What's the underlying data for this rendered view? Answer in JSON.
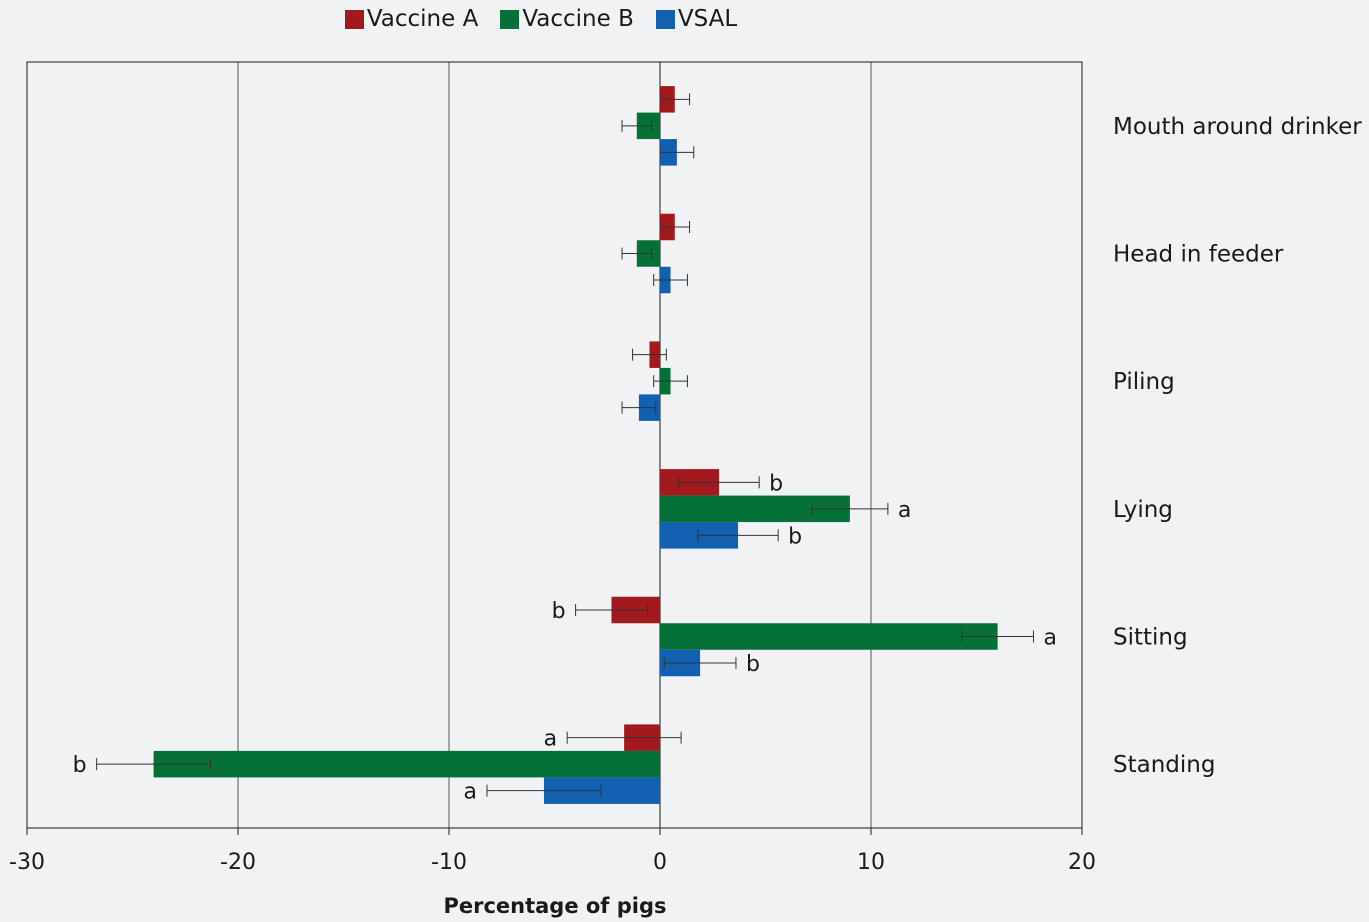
{
  "chart_data": {
    "type": "bar",
    "orientation": "horizontal",
    "title": "",
    "xlabel": "Percentage of pigs",
    "ylabel": "",
    "xlim": [
      -30,
      20
    ],
    "xticks": [
      -30,
      -20,
      -10,
      0,
      10,
      20
    ],
    "xtick_labels": [
      "-30",
      "-20",
      "-10",
      "0",
      "10",
      "20"
    ],
    "grid": "vertical",
    "legend": "top-center",
    "categories": [
      "Mouth around drinker",
      "Head in feeder",
      "Piling",
      "Lying",
      "Sitting",
      "Standing"
    ],
    "series": [
      {
        "name": "Vaccine A",
        "color": "#a31a1e",
        "values": [
          0.7,
          0.7,
          -0.5,
          2.8,
          -2.3,
          -1.7
        ],
        "errors": [
          0.7,
          0.7,
          0.8,
          1.9,
          1.7,
          2.7
        ],
        "labels": [
          "",
          "",
          "",
          "b",
          "b",
          "a"
        ]
      },
      {
        "name": "Vaccine B",
        "color": "#067039",
        "values": [
          -1.1,
          -1.1,
          0.5,
          9.0,
          16.0,
          -24.0
        ],
        "errors": [
          0.7,
          0.7,
          0.8,
          1.8,
          1.7,
          2.7
        ],
        "labels": [
          "",
          "",
          "",
          "a",
          "a",
          "b"
        ]
      },
      {
        "name": "VSAL",
        "color": "#1160b1",
        "values": [
          0.8,
          0.5,
          -1.0,
          3.7,
          1.9,
          -5.5
        ],
        "errors": [
          0.8,
          0.8,
          0.8,
          1.9,
          1.7,
          2.7
        ],
        "labels": [
          "",
          "",
          "",
          "b",
          "b",
          "a"
        ]
      }
    ]
  }
}
